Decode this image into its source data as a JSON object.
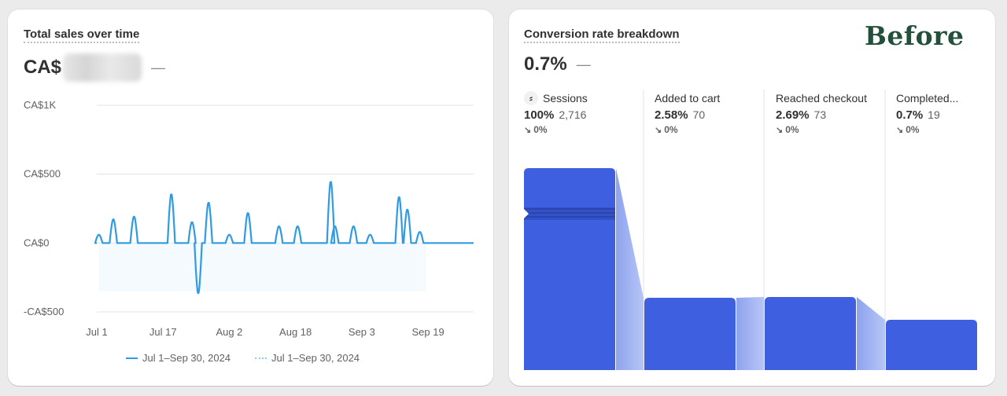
{
  "sales_card": {
    "title": "Total sales over time",
    "currency_prefix": "CA$",
    "comparison": "—",
    "legend": [
      {
        "label": "Jul 1–Sep 30, 2024",
        "style": "solid",
        "color": "#2f9be3"
      },
      {
        "label": "Jul 1–Sep 30, 2024",
        "style": "dotted",
        "color": "#8ccdf2"
      }
    ]
  },
  "conversion_card": {
    "title": "Conversion rate breakdown",
    "rate": "0.7%",
    "comparison": "—",
    "overlay_label": "Before",
    "stages": [
      {
        "name": "Sessions",
        "icon": "sessions-icon",
        "pct": "100%",
        "count": "2,716",
        "change": "0%",
        "change_icon": "arrow-down-right-icon"
      },
      {
        "name": "Added to cart",
        "pct": "2.58%",
        "count": "70",
        "change": "0%",
        "change_icon": "arrow-down-right-icon"
      },
      {
        "name": "Reached checkout",
        "pct": "2.69%",
        "count": "73",
        "change": "0%",
        "change_icon": "arrow-down-right-icon"
      },
      {
        "name": "Completed...",
        "pct": "0.7%",
        "count": "19",
        "change": "0%",
        "change_icon": "arrow-down-right-icon"
      }
    ],
    "bar_color": "#3e5fe0",
    "connector_color": "#9db0f0"
  },
  "chart_data": [
    {
      "type": "line",
      "title": "Total sales over time",
      "xlabel": "",
      "ylabel": "",
      "y_ticks": [
        "CA$1K",
        "CA$500",
        "CA$0",
        "-CA$500"
      ],
      "y_tick_values": [
        1000,
        500,
        0,
        -500
      ],
      "ylim": [
        -500,
        1000
      ],
      "x_ticks": [
        "Jul 1",
        "Jul 17",
        "Aug 2",
        "Aug 18",
        "Sep 3",
        "Sep 19"
      ],
      "x_tick_days": [
        0,
        16,
        32,
        48,
        64,
        80
      ],
      "x_range_days": [
        0,
        91
      ],
      "grid": true,
      "series": [
        {
          "name": "Jul 1–Sep 30, 2024",
          "style": "solid",
          "color": "#2f9be3",
          "points": [
            [
              0.5,
              60
            ],
            [
              4,
              170
            ],
            [
              9,
              190
            ],
            [
              18,
              350
            ],
            [
              23,
              150
            ],
            [
              24.5,
              -360
            ],
            [
              27,
              290
            ],
            [
              32,
              60
            ],
            [
              36.5,
              215
            ],
            [
              44,
              120
            ],
            [
              48.5,
              120
            ],
            [
              56.5,
              440
            ],
            [
              57.5,
              120
            ],
            [
              62,
              120
            ],
            [
              66,
              60
            ],
            [
              73,
              330
            ],
            [
              75,
              240
            ],
            [
              78,
              80
            ]
          ]
        },
        {
          "name": "Jul 1–Sep 30, 2024",
          "style": "dotted",
          "color": "#8ccdf2",
          "points": []
        }
      ]
    },
    {
      "type": "bar",
      "title": "Conversion rate breakdown",
      "categories": [
        "Sessions",
        "Added to cart",
        "Reached checkout",
        "Completed..."
      ],
      "values": [
        100,
        2.58,
        2.69,
        0.7
      ],
      "counts": [
        2716,
        70,
        73,
        19
      ]
    }
  ]
}
